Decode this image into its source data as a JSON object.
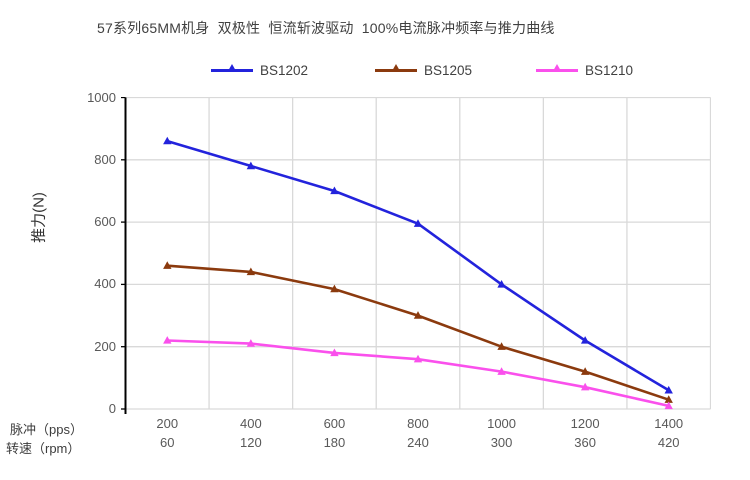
{
  "title": "57系列65MM机身  双极性  恒流斩波驱动  100%电流脉冲频率与推力曲线",
  "y_axis_title": "推力(N)",
  "x_row_labels": {
    "pps": "脉冲（pps）",
    "rpm": "转速（rpm）"
  },
  "colors": {
    "grid": "#d9d9d9",
    "axis": "#000000",
    "tick_text": "#595959",
    "title_text": "#404040"
  },
  "chart_data": {
    "type": "line",
    "title": "57系列65MM机身 双极性 恒流斩波驱动 100%电流脉冲频率与推力曲线",
    "xlabel_rows": [
      "脉冲（pps）",
      "转速（rpm）"
    ],
    "ylabel": "推力(N)",
    "categories_pps": [
      200,
      400,
      600,
      800,
      1000,
      1200,
      1400
    ],
    "categories_rpm": [
      60,
      120,
      180,
      240,
      300,
      360,
      420
    ],
    "ylim": [
      0,
      1000
    ],
    "ytick_step": 200,
    "grid": true,
    "legend_position": "top",
    "series": [
      {
        "name": "BS1202",
        "color": "#2323dc",
        "marker": "triangle",
        "values": [
          860,
          780,
          700,
          595,
          400,
          220,
          60
        ]
      },
      {
        "name": "BS1205",
        "color": "#8b3a0e",
        "marker": "triangle",
        "values": [
          460,
          440,
          385,
          300,
          200,
          120,
          30
        ]
      },
      {
        "name": "BS1210",
        "color": "#fa50ec",
        "marker": "triangle",
        "values": [
          220,
          210,
          180,
          160,
          120,
          70,
          10
        ]
      }
    ]
  }
}
